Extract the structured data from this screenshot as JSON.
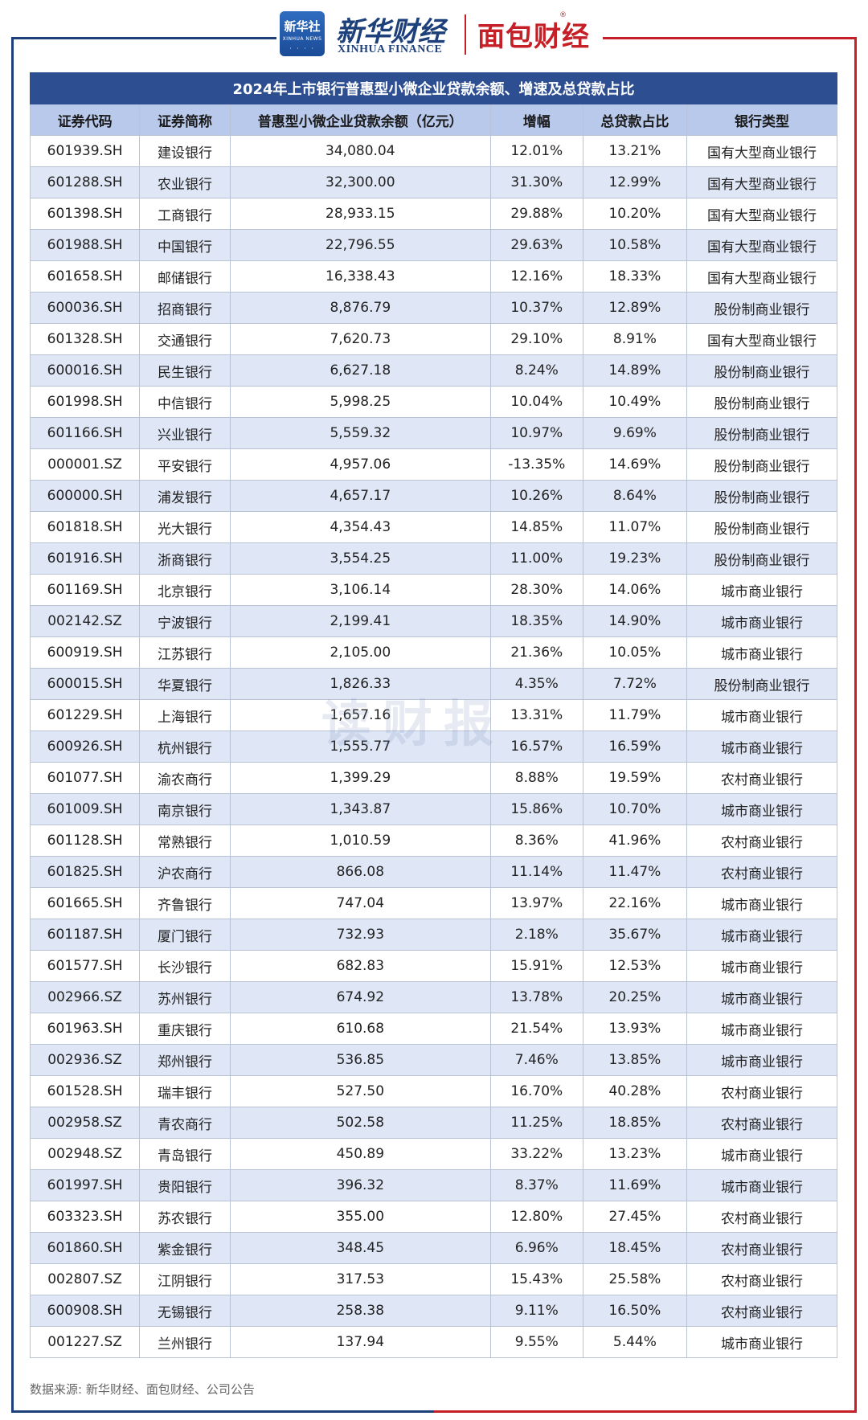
{
  "header": {
    "xinhua_logo_text": "新华社",
    "xinhua_logo_sub": "XINHUA NEWS",
    "brand_cn": "新华财经",
    "brand_en": "XINHUA FINANCE",
    "mianbao": "面包财经",
    "reg_mark": "®"
  },
  "table": {
    "title": "2024年上市银行普惠型小微企业贷款余额、增速及总贷款占比",
    "columns": [
      "证券代码",
      "证券简称",
      "普惠型小微企业贷款余额（亿元）",
      "增幅",
      "总贷款占比",
      "银行类型"
    ],
    "rows": [
      [
        "601939.SH",
        "建设银行",
        "34,080.04",
        "12.01%",
        "13.21%",
        "国有大型商业银行"
      ],
      [
        "601288.SH",
        "农业银行",
        "32,300.00",
        "31.30%",
        "12.99%",
        "国有大型商业银行"
      ],
      [
        "601398.SH",
        "工商银行",
        "28,933.15",
        "29.88%",
        "10.20%",
        "国有大型商业银行"
      ],
      [
        "601988.SH",
        "中国银行",
        "22,796.55",
        "29.63%",
        "10.58%",
        "国有大型商业银行"
      ],
      [
        "601658.SH",
        "邮储银行",
        "16,338.43",
        "12.16%",
        "18.33%",
        "国有大型商业银行"
      ],
      [
        "600036.SH",
        "招商银行",
        "8,876.79",
        "10.37%",
        "12.89%",
        "股份制商业银行"
      ],
      [
        "601328.SH",
        "交通银行",
        "7,620.73",
        "29.10%",
        "8.91%",
        "国有大型商业银行"
      ],
      [
        "600016.SH",
        "民生银行",
        "6,627.18",
        "8.24%",
        "14.89%",
        "股份制商业银行"
      ],
      [
        "601998.SH",
        "中信银行",
        "5,998.25",
        "10.04%",
        "10.49%",
        "股份制商业银行"
      ],
      [
        "601166.SH",
        "兴业银行",
        "5,559.32",
        "10.97%",
        "9.69%",
        "股份制商业银行"
      ],
      [
        "000001.SZ",
        "平安银行",
        "4,957.06",
        "-13.35%",
        "14.69%",
        "股份制商业银行"
      ],
      [
        "600000.SH",
        "浦发银行",
        "4,657.17",
        "10.26%",
        "8.64%",
        "股份制商业银行"
      ],
      [
        "601818.SH",
        "光大银行",
        "4,354.43",
        "14.85%",
        "11.07%",
        "股份制商业银行"
      ],
      [
        "601916.SH",
        "浙商银行",
        "3,554.25",
        "11.00%",
        "19.23%",
        "股份制商业银行"
      ],
      [
        "601169.SH",
        "北京银行",
        "3,106.14",
        "28.30%",
        "14.06%",
        "城市商业银行"
      ],
      [
        "002142.SZ",
        "宁波银行",
        "2,199.41",
        "18.35%",
        "14.90%",
        "城市商业银行"
      ],
      [
        "600919.SH",
        "江苏银行",
        "2,105.00",
        "21.36%",
        "10.05%",
        "城市商业银行"
      ],
      [
        "600015.SH",
        "华夏银行",
        "1,826.33",
        "4.35%",
        "7.72%",
        "股份制商业银行"
      ],
      [
        "601229.SH",
        "上海银行",
        "1,657.16",
        "13.31%",
        "11.79%",
        "城市商业银行"
      ],
      [
        "600926.SH",
        "杭州银行",
        "1,555.77",
        "16.57%",
        "16.59%",
        "城市商业银行"
      ],
      [
        "601077.SH",
        "渝农商行",
        "1,399.29",
        "8.88%",
        "19.59%",
        "农村商业银行"
      ],
      [
        "601009.SH",
        "南京银行",
        "1,343.87",
        "15.86%",
        "10.70%",
        "城市商业银行"
      ],
      [
        "601128.SH",
        "常熟银行",
        "1,010.59",
        "8.36%",
        "41.96%",
        "农村商业银行"
      ],
      [
        "601825.SH",
        "沪农商行",
        "866.08",
        "11.14%",
        "11.47%",
        "农村商业银行"
      ],
      [
        "601665.SH",
        "齐鲁银行",
        "747.04",
        "13.97%",
        "22.16%",
        "城市商业银行"
      ],
      [
        "601187.SH",
        "厦门银行",
        "732.93",
        "2.18%",
        "35.67%",
        "城市商业银行"
      ],
      [
        "601577.SH",
        "长沙银行",
        "682.83",
        "15.91%",
        "12.53%",
        "城市商业银行"
      ],
      [
        "002966.SZ",
        "苏州银行",
        "674.92",
        "13.78%",
        "20.25%",
        "城市商业银行"
      ],
      [
        "601963.SH",
        "重庆银行",
        "610.68",
        "21.54%",
        "13.93%",
        "城市商业银行"
      ],
      [
        "002936.SZ",
        "郑州银行",
        "536.85",
        "7.46%",
        "13.85%",
        "城市商业银行"
      ],
      [
        "601528.SH",
        "瑞丰银行",
        "527.50",
        "16.70%",
        "40.28%",
        "农村商业银行"
      ],
      [
        "002958.SZ",
        "青农商行",
        "502.58",
        "11.25%",
        "18.85%",
        "农村商业银行"
      ],
      [
        "002948.SZ",
        "青岛银行",
        "450.89",
        "33.22%",
        "13.23%",
        "城市商业银行"
      ],
      [
        "601997.SH",
        "贵阳银行",
        "396.32",
        "8.37%",
        "11.69%",
        "城市商业银行"
      ],
      [
        "603323.SH",
        "苏农银行",
        "355.00",
        "12.80%",
        "27.45%",
        "农村商业银行"
      ],
      [
        "601860.SH",
        "紫金银行",
        "348.45",
        "6.96%",
        "18.45%",
        "农村商业银行"
      ],
      [
        "002807.SZ",
        "江阴银行",
        "317.53",
        "15.43%",
        "25.58%",
        "农村商业银行"
      ],
      [
        "600908.SH",
        "无锡银行",
        "258.38",
        "9.11%",
        "16.50%",
        "农村商业银行"
      ],
      [
        "001227.SZ",
        "兰州银行",
        "137.94",
        "9.55%",
        "5.44%",
        "城市商业银行"
      ]
    ]
  },
  "watermark": "读财报",
  "source": "数据来源: 新华财经、面包财经、公司公告",
  "colors": {
    "title_bg": "#2d4e91",
    "header_bg": "#b9c9ec",
    "stripe_bg": "#dfe7f7",
    "brand_blue": "#1d3f7a",
    "brand_red": "#c52027"
  }
}
